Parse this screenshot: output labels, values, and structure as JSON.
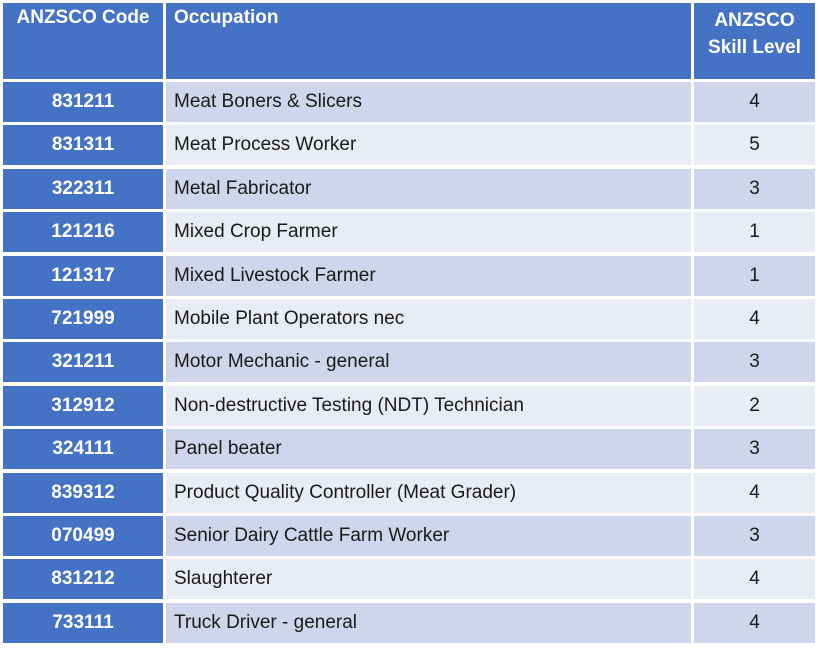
{
  "table": {
    "headers": {
      "code": "ANZSCO Code",
      "occupation": "Occupation",
      "skill_line1": "ANZSCO",
      "skill_line2": "Skill Level"
    },
    "rows": [
      {
        "code": "831211",
        "occupation": "Meat Boners & Slicers",
        "skill": "4"
      },
      {
        "code": "831311",
        "occupation": "Meat Process Worker",
        "skill": "5"
      },
      {
        "code": "322311",
        "occupation": "Metal Fabricator",
        "skill": "3"
      },
      {
        "code": "121216",
        "occupation": "Mixed Crop Farmer",
        "skill": "1"
      },
      {
        "code": "121317",
        "occupation": "Mixed Livestock Farmer",
        "skill": "1"
      },
      {
        "code": "721999",
        "occupation": "Mobile Plant Operators nec",
        "skill": "4"
      },
      {
        "code": "321211",
        "occupation": "Motor Mechanic - general",
        "skill": "3"
      },
      {
        "code": "312912",
        "occupation": "Non-destructive Testing (NDT) Technician",
        "skill": "2"
      },
      {
        "code": "324111",
        "occupation": "Panel beater",
        "skill": "3"
      },
      {
        "code": "839312",
        "occupation": "Product Quality Controller (Meat Grader)",
        "skill": "4"
      },
      {
        "code": "070499",
        "occupation": "Senior Dairy Cattle Farm Worker",
        "skill": "3"
      },
      {
        "code": "831212",
        "occupation": "Slaughterer",
        "skill": "4"
      },
      {
        "code": "733111",
        "occupation": "Truck Driver - general",
        "skill": "4"
      }
    ]
  }
}
